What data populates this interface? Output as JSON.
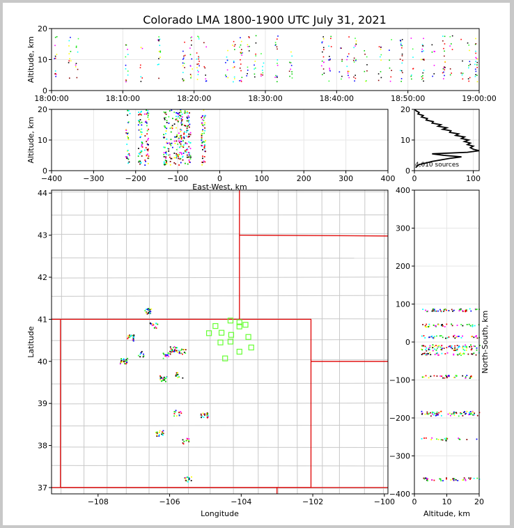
{
  "title": "Colorado LMA 1800-1900 UTC July 31, 2021",
  "colors": {
    "track": "#000000",
    "state_border": "#e00000",
    "county_border": "#c8c8c8",
    "station": "#66ff33",
    "grid": "#e6e6e6"
  },
  "chart_data": [
    {
      "id": "altitude-time",
      "type": "scatter",
      "ylabel": "Altitude, km",
      "ylim": [
        0,
        20
      ],
      "yticks": [
        "0",
        "10",
        "20"
      ],
      "xlim": [
        "18:00:00",
        "19:00:00"
      ],
      "xticks": [
        "18:00:00",
        "18:10:00",
        "18:20:00",
        "18:30:00",
        "18:40:00",
        "18:50:00",
        "19:00:00"
      ],
      "source_clusters_minutes": [
        0.5,
        2.5,
        3.5,
        10.5,
        12.5,
        15,
        18.5,
        19.5,
        20.5,
        21.5,
        24.5,
        25.5,
        26.5,
        27.5,
        28.5,
        29.5,
        31.5,
        33.5,
        38,
        39,
        40.5,
        41.5,
        42.5,
        44,
        46,
        47.5,
        49,
        50.5,
        52,
        53.5,
        55,
        56,
        57.5,
        58.5,
        59.5
      ]
    },
    {
      "id": "altitude-eastwest",
      "type": "scatter",
      "xlabel": "East-West, km",
      "ylabel": "Altitude, km",
      "xlim": [
        -400,
        400
      ],
      "xticks": [
        "−400",
        "−300",
        "−200",
        "−100",
        "0",
        "100",
        "200",
        "300",
        "400"
      ],
      "ylim": [
        0,
        20
      ],
      "yticks": [
        "0",
        "10",
        "20"
      ],
      "source_columns_km": [
        -220,
        -190,
        -175,
        -130,
        -118,
        -105,
        -95,
        -85,
        -75,
        -40
      ]
    },
    {
      "id": "altitude-histogram",
      "type": "line",
      "xlim": [
        0,
        110
      ],
      "xticks": [
        "0",
        "100"
      ],
      "ylim": [
        0,
        20
      ],
      "yticks": [
        "0",
        "10",
        "20"
      ],
      "annotation": "4,010 sources",
      "profile": [
        {
          "alt": 1,
          "n": 2
        },
        {
          "alt": 2,
          "n": 8
        },
        {
          "alt": 2.5,
          "n": 20
        },
        {
          "alt": 3,
          "n": 30
        },
        {
          "alt": 3.5,
          "n": 45
        },
        {
          "alt": 4,
          "n": 60
        },
        {
          "alt": 4.5,
          "n": 80
        },
        {
          "alt": 5,
          "n": 50
        },
        {
          "alt": 5.5,
          "n": 30
        },
        {
          "alt": 6,
          "n": 90
        },
        {
          "alt": 6.5,
          "n": 110
        },
        {
          "alt": 7,
          "n": 100
        },
        {
          "alt": 7.5,
          "n": 95
        },
        {
          "alt": 8,
          "n": 100
        },
        {
          "alt": 8.5,
          "n": 90
        },
        {
          "alt": 9,
          "n": 95
        },
        {
          "alt": 9.5,
          "n": 85
        },
        {
          "alt": 10,
          "n": 92
        },
        {
          "alt": 10.5,
          "n": 80
        },
        {
          "alt": 11,
          "n": 85
        },
        {
          "alt": 11.5,
          "n": 70
        },
        {
          "alt": 12,
          "n": 75
        },
        {
          "alt": 12.5,
          "n": 60
        },
        {
          "alt": 13,
          "n": 62
        },
        {
          "alt": 13.5,
          "n": 48
        },
        {
          "alt": 14,
          "n": 55
        },
        {
          "alt": 14.5,
          "n": 40
        },
        {
          "alt": 15,
          "n": 45
        },
        {
          "alt": 15.5,
          "n": 30
        },
        {
          "alt": 16,
          "n": 32
        },
        {
          "alt": 16.5,
          "n": 20
        },
        {
          "alt": 17,
          "n": 22
        },
        {
          "alt": 17.5,
          "n": 12
        },
        {
          "alt": 18,
          "n": 15
        },
        {
          "alt": 18.5,
          "n": 6
        },
        {
          "alt": 19,
          "n": 8
        },
        {
          "alt": 19.5,
          "n": 3
        },
        {
          "alt": 20,
          "n": 1
        }
      ]
    },
    {
      "id": "plan-view",
      "type": "scatter",
      "xlabel": "Longitude",
      "ylabel": "Latitude",
      "xlim": [
        -109.3,
        -99.9
      ],
      "xticks": [
        {
          "v": -108,
          "label": "−108"
        },
        {
          "v": -106,
          "label": "−106"
        },
        {
          "v": -104,
          "label": "−104"
        },
        {
          "v": -102,
          "label": "−102"
        },
        {
          "v": -100,
          "label": "−100"
        }
      ],
      "ylim": [
        36.85,
        44.07
      ],
      "yticks": [
        {
          "v": 37,
          "label": "37"
        },
        {
          "v": 38,
          "label": "38"
        },
        {
          "v": 39,
          "label": "39"
        },
        {
          "v": 40,
          "label": "40"
        },
        {
          "v": 41,
          "label": "41"
        },
        {
          "v": 42,
          "label": "42"
        },
        {
          "v": 43,
          "label": "43"
        },
        {
          "v": 44,
          "label": "44"
        }
      ],
      "stations": [
        {
          "lon": -104.3,
          "lat": 40.97
        },
        {
          "lon": -104.05,
          "lat": 40.93
        },
        {
          "lon": -103.88,
          "lat": 40.87
        },
        {
          "lon": -104.72,
          "lat": 40.84
        },
        {
          "lon": -104.05,
          "lat": 40.83
        },
        {
          "lon": -104.9,
          "lat": 40.67
        },
        {
          "lon": -104.55,
          "lat": 40.68
        },
        {
          "lon": -104.28,
          "lat": 40.63
        },
        {
          "lon": -103.8,
          "lat": 40.58
        },
        {
          "lon": -104.58,
          "lat": 40.45
        },
        {
          "lon": -104.3,
          "lat": 40.47
        },
        {
          "lon": -103.72,
          "lat": 40.33
        },
        {
          "lon": -104.05,
          "lat": 40.23
        },
        {
          "lon": -104.45,
          "lat": 40.07
        }
      ],
      "source_clusters": [
        {
          "lon": -106.6,
          "lat": 41.2
        },
        {
          "lon": -107.1,
          "lat": 40.57
        },
        {
          "lon": -106.8,
          "lat": 40.18
        },
        {
          "lon": -107.3,
          "lat": 40.02
        },
        {
          "lon": -105.9,
          "lat": 40.3
        },
        {
          "lon": -105.65,
          "lat": 40.25
        },
        {
          "lon": -106.1,
          "lat": 40.15
        },
        {
          "lon": -106.45,
          "lat": 40.87
        },
        {
          "lon": -106.2,
          "lat": 39.6
        },
        {
          "lon": -105.75,
          "lat": 39.68
        },
        {
          "lon": -105.8,
          "lat": 38.78
        },
        {
          "lon": -105.05,
          "lat": 38.72
        },
        {
          "lon": -106.3,
          "lat": 38.3
        },
        {
          "lon": -105.55,
          "lat": 38.12
        },
        {
          "lon": -105.5,
          "lat": 37.22
        }
      ]
    },
    {
      "id": "northsouth-altitude",
      "type": "scatter",
      "xlabel": "Altitude, km",
      "ylabel": "North-South, km",
      "xlim": [
        0,
        20
      ],
      "xticks": [
        "0",
        "10",
        "20"
      ],
      "ylim": [
        -400,
        400
      ],
      "yticks": [
        "−400",
        "−300",
        "−200",
        "−100",
        "0",
        "100",
        "200",
        "300",
        "400"
      ],
      "source_rows_km": [
        -360,
        -255,
        -190,
        -185,
        -90,
        -30,
        -18,
        -10,
        15,
        45,
        85
      ]
    }
  ]
}
